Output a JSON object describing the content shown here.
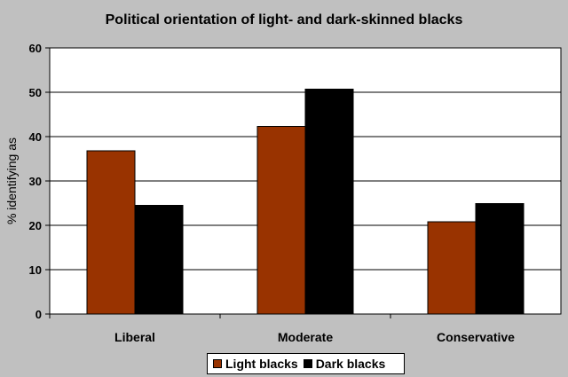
{
  "chart_data": {
    "type": "bar",
    "title": "Political orientation of light- and dark-skinned blacks",
    "xlabel": "",
    "ylabel": "% identifying as",
    "ylim": [
      0,
      60
    ],
    "yticks": [
      0,
      10,
      20,
      30,
      40,
      50,
      60
    ],
    "grid": true,
    "legend_position": "bottom",
    "categories": [
      "Liberal",
      "Moderate",
      "Conservative"
    ],
    "series": [
      {
        "name": "Light blacks",
        "color": "#993300",
        "values": [
          36.8,
          42.3,
          20.8
        ]
      },
      {
        "name": "Dark blacks",
        "color": "#000000",
        "values": [
          24.5,
          50.7,
          24.9
        ]
      }
    ]
  },
  "colors": {
    "background": "#c0c0c0",
    "plot_background": "#ffffff"
  }
}
